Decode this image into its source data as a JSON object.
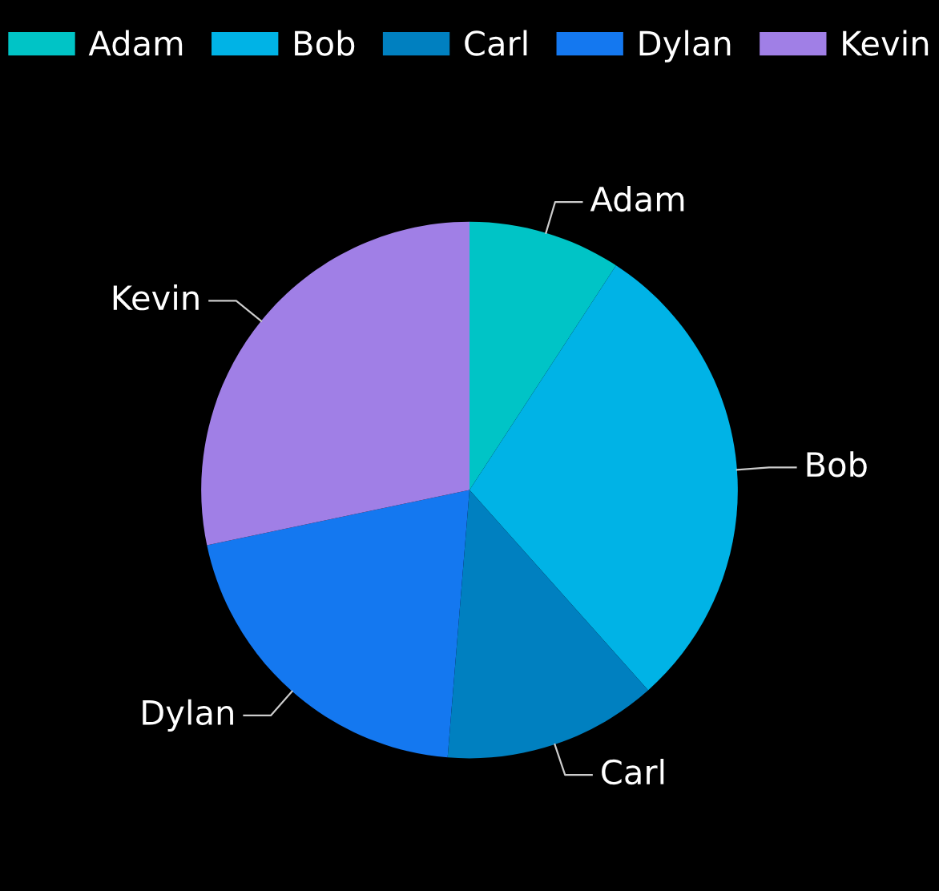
{
  "chart_data": {
    "type": "pie",
    "categories": [
      "Adam",
      "Bob",
      "Carl",
      "Dylan",
      "Kevin"
    ],
    "values": [
      9.2,
      29.2,
      12.9,
      20.4,
      28.3
    ],
    "colors": [
      "#00c4c6",
      "#00b3e6",
      "#0080c0",
      "#1478f0",
      "#a07fe6"
    ],
    "legend": "top"
  }
}
